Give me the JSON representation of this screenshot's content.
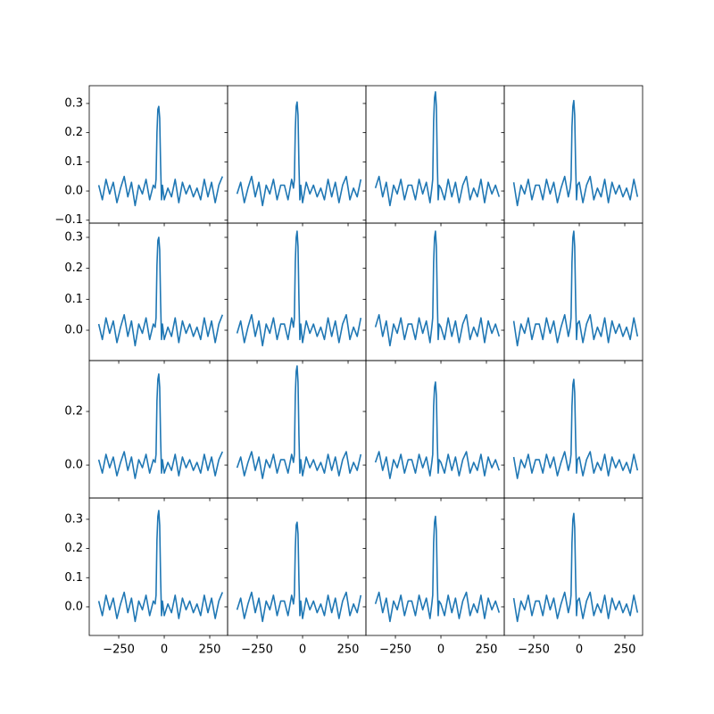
{
  "chart_data": [
    {
      "type": "line",
      "color": "#1f77b4",
      "values": [
        0.02,
        -0.03,
        0.04,
        -0.01,
        0.03,
        -0.04,
        0.01,
        0.05,
        -0.02,
        0.03,
        -0.05,
        0.02,
        -0.01,
        0.04,
        -0.03,
        0.02,
        0.01,
        0.04,
        0.2,
        0.28,
        0.29,
        0.25,
        0.09,
        -0.03,
        0.02,
        -0.03,
        0.01,
        -0.02,
        0.04,
        -0.04,
        0.03,
        -0.01,
        0.02,
        -0.02,
        0.01,
        -0.03,
        0.04,
        -0.02,
        0.03,
        -0.04,
        0.02,
        0.05
      ]
    },
    {
      "type": "line",
      "color": "#1f77b4",
      "values": [
        -0.01,
        0.03,
        -0.04,
        0.01,
        0.05,
        -0.02,
        0.03,
        -0.05,
        0.02,
        -0.01,
        0.04,
        -0.03,
        0.02,
        0.02,
        -0.03,
        0.04,
        0.01,
        0.04,
        0.21,
        0.29,
        0.305,
        0.26,
        0.09,
        -0.03,
        0.02,
        -0.04,
        0.03,
        -0.01,
        0.02,
        -0.02,
        0.01,
        -0.03,
        0.04,
        -0.02,
        0.03,
        -0.04,
        0.02,
        0.05,
        -0.03,
        0.01,
        -0.02,
        0.04
      ]
    },
    {
      "type": "line",
      "color": "#1f77b4",
      "values": [
        0.01,
        0.05,
        -0.02,
        0.03,
        -0.05,
        0.02,
        -0.01,
        0.04,
        -0.03,
        0.02,
        0.02,
        -0.03,
        0.04,
        -0.01,
        0.03,
        -0.04,
        0.01,
        0.04,
        0.24,
        0.32,
        0.34,
        0.29,
        0.1,
        -0.03,
        0.02,
        0.01,
        -0.03,
        0.04,
        -0.02,
        0.03,
        -0.04,
        0.02,
        0.05,
        -0.03,
        0.01,
        -0.02,
        0.04,
        -0.04,
        0.03,
        -0.01,
        0.02,
        -0.02
      ]
    },
    {
      "type": "line",
      "color": "#1f77b4",
      "values": [
        0.03,
        -0.05,
        0.02,
        -0.01,
        0.04,
        -0.03,
        0.02,
        0.02,
        -0.03,
        0.04,
        -0.01,
        0.03,
        -0.04,
        0.01,
        0.05,
        -0.02,
        0.01,
        0.04,
        0.22,
        0.29,
        0.31,
        0.26,
        0.09,
        -0.03,
        0.02,
        0.03,
        -0.04,
        0.02,
        0.05,
        -0.03,
        0.01,
        -0.02,
        0.04,
        -0.04,
        0.03,
        -0.01,
        0.02,
        -0.02,
        0.01,
        -0.03,
        0.04,
        -0.02
      ]
    },
    {
      "type": "line",
      "color": "#1f77b4",
      "values": [
        0.02,
        -0.03,
        0.04,
        -0.01,
        0.03,
        -0.04,
        0.01,
        0.05,
        -0.02,
        0.03,
        -0.05,
        0.02,
        -0.01,
        0.04,
        -0.03,
        0.02,
        0.01,
        0.04,
        0.21,
        0.29,
        0.3,
        0.26,
        0.09,
        -0.03,
        0.02,
        -0.03,
        0.01,
        -0.02,
        0.04,
        -0.04,
        0.03,
        -0.01,
        0.02,
        -0.02,
        0.01,
        -0.03,
        0.04,
        -0.02,
        0.03,
        -0.04,
        0.02,
        0.05
      ]
    },
    {
      "type": "line",
      "color": "#1f77b4",
      "values": [
        -0.01,
        0.03,
        -0.04,
        0.01,
        0.05,
        -0.02,
        0.03,
        -0.05,
        0.02,
        -0.01,
        0.04,
        -0.03,
        0.02,
        0.02,
        -0.03,
        0.04,
        0.01,
        0.04,
        0.22,
        0.3,
        0.32,
        0.27,
        0.1,
        -0.03,
        0.02,
        -0.04,
        0.03,
        -0.01,
        0.02,
        -0.02,
        0.01,
        -0.03,
        0.04,
        -0.02,
        0.03,
        -0.04,
        0.02,
        0.05,
        -0.03,
        0.01,
        -0.02,
        0.04
      ]
    },
    {
      "type": "line",
      "color": "#1f77b4",
      "values": [
        0.01,
        0.05,
        -0.02,
        0.03,
        -0.05,
        0.02,
        -0.01,
        0.04,
        -0.03,
        0.02,
        0.02,
        -0.03,
        0.04,
        -0.01,
        0.03,
        -0.04,
        0.01,
        0.04,
        0.22,
        0.3,
        0.32,
        0.27,
        0.1,
        -0.03,
        0.02,
        0.01,
        -0.03,
        0.04,
        -0.02,
        0.03,
        -0.04,
        0.02,
        0.05,
        -0.03,
        0.01,
        -0.02,
        0.04,
        -0.04,
        0.03,
        -0.01,
        0.02,
        -0.02
      ]
    },
    {
      "type": "line",
      "color": "#1f77b4",
      "values": [
        0.03,
        -0.05,
        0.02,
        -0.01,
        0.04,
        -0.03,
        0.02,
        0.02,
        -0.03,
        0.04,
        -0.01,
        0.03,
        -0.04,
        0.01,
        0.05,
        -0.02,
        0.01,
        0.04,
        0.22,
        0.3,
        0.32,
        0.27,
        0.1,
        -0.03,
        0.02,
        0.03,
        -0.04,
        0.02,
        0.05,
        -0.03,
        0.01,
        -0.02,
        0.04,
        -0.04,
        0.03,
        -0.01,
        0.02,
        -0.02,
        0.01,
        -0.03,
        0.04,
        -0.02
      ]
    },
    {
      "type": "line",
      "color": "#1f77b4",
      "values": [
        0.02,
        -0.03,
        0.04,
        -0.01,
        0.03,
        -0.04,
        0.01,
        0.05,
        -0.02,
        0.03,
        -0.05,
        0.02,
        -0.01,
        0.04,
        -0.03,
        0.02,
        0.01,
        0.04,
        0.24,
        0.32,
        0.34,
        0.29,
        0.1,
        -0.03,
        0.02,
        -0.03,
        0.01,
        -0.02,
        0.04,
        -0.04,
        0.03,
        -0.01,
        0.02,
        -0.02,
        0.01,
        -0.03,
        0.04,
        -0.02,
        0.03,
        -0.04,
        0.02,
        0.05
      ]
    },
    {
      "type": "line",
      "color": "#1f77b4",
      "values": [
        -0.01,
        0.03,
        -0.04,
        0.01,
        0.05,
        -0.02,
        0.03,
        -0.05,
        0.02,
        -0.01,
        0.04,
        -0.03,
        0.02,
        0.02,
        -0.03,
        0.04,
        0.01,
        0.04,
        0.26,
        0.35,
        0.37,
        0.31,
        0.11,
        -0.03,
        0.02,
        -0.04,
        0.03,
        -0.01,
        0.02,
        -0.02,
        0.01,
        -0.03,
        0.04,
        -0.02,
        0.03,
        -0.04,
        0.02,
        0.05,
        -0.03,
        0.01,
        -0.02,
        0.04
      ]
    },
    {
      "type": "line",
      "color": "#1f77b4",
      "values": [
        0.01,
        0.05,
        -0.02,
        0.03,
        -0.05,
        0.02,
        -0.01,
        0.04,
        -0.03,
        0.02,
        0.02,
        -0.03,
        0.04,
        -0.01,
        0.03,
        -0.04,
        0.01,
        0.04,
        0.22,
        0.29,
        0.31,
        0.26,
        0.09,
        -0.03,
        0.02,
        0.01,
        -0.03,
        0.04,
        -0.02,
        0.03,
        -0.04,
        0.02,
        0.05,
        -0.03,
        0.01,
        -0.02,
        0.04,
        -0.04,
        0.03,
        -0.01,
        0.02,
        -0.02
      ]
    },
    {
      "type": "line",
      "color": "#1f77b4",
      "values": [
        0.03,
        -0.05,
        0.02,
        -0.01,
        0.04,
        -0.03,
        0.02,
        0.02,
        -0.03,
        0.04,
        -0.01,
        0.03,
        -0.04,
        0.01,
        0.05,
        -0.02,
        0.01,
        0.04,
        0.22,
        0.3,
        0.32,
        0.27,
        0.1,
        -0.03,
        0.02,
        0.03,
        -0.04,
        0.02,
        0.05,
        -0.03,
        0.01,
        -0.02,
        0.04,
        -0.04,
        0.03,
        -0.01,
        0.02,
        -0.02,
        0.01,
        -0.03,
        0.04,
        -0.02
      ]
    },
    {
      "type": "line",
      "color": "#1f77b4",
      "values": [
        0.02,
        -0.03,
        0.04,
        -0.01,
        0.03,
        -0.04,
        0.01,
        0.05,
        -0.02,
        0.03,
        -0.05,
        0.02,
        -0.01,
        0.04,
        -0.03,
        0.02,
        0.01,
        0.04,
        0.23,
        0.31,
        0.33,
        0.28,
        0.1,
        -0.03,
        0.02,
        -0.03,
        0.01,
        -0.02,
        0.04,
        -0.04,
        0.03,
        -0.01,
        0.02,
        -0.02,
        0.01,
        -0.03,
        0.04,
        -0.02,
        0.03,
        -0.04,
        0.02,
        0.05
      ]
    },
    {
      "type": "line",
      "color": "#1f77b4",
      "values": [
        -0.01,
        0.03,
        -0.04,
        0.01,
        0.05,
        -0.02,
        0.03,
        -0.05,
        0.02,
        -0.01,
        0.04,
        -0.03,
        0.02,
        0.02,
        -0.03,
        0.04,
        0.01,
        0.04,
        0.2,
        0.28,
        0.29,
        0.25,
        0.09,
        -0.03,
        0.02,
        -0.04,
        0.03,
        -0.01,
        0.02,
        -0.02,
        0.01,
        -0.03,
        0.04,
        -0.02,
        0.03,
        -0.04,
        0.02,
        0.05,
        -0.03,
        0.01,
        -0.02,
        0.04
      ]
    },
    {
      "type": "line",
      "color": "#1f77b4",
      "values": [
        0.01,
        0.05,
        -0.02,
        0.03,
        -0.05,
        0.02,
        -0.01,
        0.04,
        -0.03,
        0.02,
        0.02,
        -0.03,
        0.04,
        -0.01,
        0.03,
        -0.04,
        0.01,
        0.04,
        0.22,
        0.29,
        0.31,
        0.26,
        0.09,
        -0.03,
        0.02,
        0.01,
        -0.03,
        0.04,
        -0.02,
        0.03,
        -0.04,
        0.02,
        0.05,
        -0.03,
        0.01,
        -0.02,
        0.04,
        -0.04,
        0.03,
        -0.01,
        0.02,
        -0.02
      ]
    },
    {
      "type": "line",
      "color": "#1f77b4",
      "values": [
        0.03,
        -0.05,
        0.02,
        -0.01,
        0.04,
        -0.03,
        0.02,
        0.02,
        -0.03,
        0.04,
        -0.01,
        0.03,
        -0.04,
        0.01,
        0.05,
        -0.02,
        0.01,
        0.04,
        0.22,
        0.3,
        0.32,
        0.27,
        0.1,
        -0.03,
        0.02,
        0.03,
        -0.04,
        0.02,
        0.05,
        -0.03,
        0.01,
        -0.02,
        0.04,
        -0.04,
        0.03,
        -0.01,
        0.02,
        -0.02,
        0.01,
        -0.03,
        0.04,
        -0.02
      ]
    }
  ],
  "shared": {
    "x": [
      -360,
      -340,
      -320,
      -300,
      -280,
      -260,
      -240,
      -220,
      -200,
      -180,
      -160,
      -140,
      -120,
      -100,
      -80,
      -60,
      -50,
      -45,
      -40,
      -35,
      -30,
      -25,
      -20,
      -15,
      -10,
      0,
      20,
      40,
      60,
      80,
      100,
      120,
      140,
      160,
      180,
      200,
      220,
      240,
      260,
      280,
      300,
      320
    ],
    "xlim": [
      -412,
      348
    ],
    "xticks": [
      {
        "value": -250,
        "label": "−250"
      },
      0,
      250
    ],
    "rows": [
      {
        "ylim": [
          -0.11,
          0.361
        ],
        "yticks": [
          {
            "value": -0.1,
            "label": "−0.1"
          },
          {
            "value": 0,
            "label": "0.0"
          },
          0.1,
          0.2,
          0.3
        ]
      },
      {
        "ylim": [
          -0.098,
          0.346
        ],
        "yticks": [
          {
            "value": 0,
            "label": "0.0"
          },
          0.1,
          0.2,
          0.3
        ]
      },
      {
        "ylim": [
          -0.123,
          0.39
        ],
        "yticks": [
          {
            "value": 0,
            "label": "0.0"
          },
          0.2
        ]
      },
      {
        "ylim": [
          -0.098,
          0.373
        ],
        "yticks": [
          {
            "value": 0,
            "label": "0.0"
          },
          0.1,
          0.2,
          0.3
        ]
      }
    ]
  }
}
